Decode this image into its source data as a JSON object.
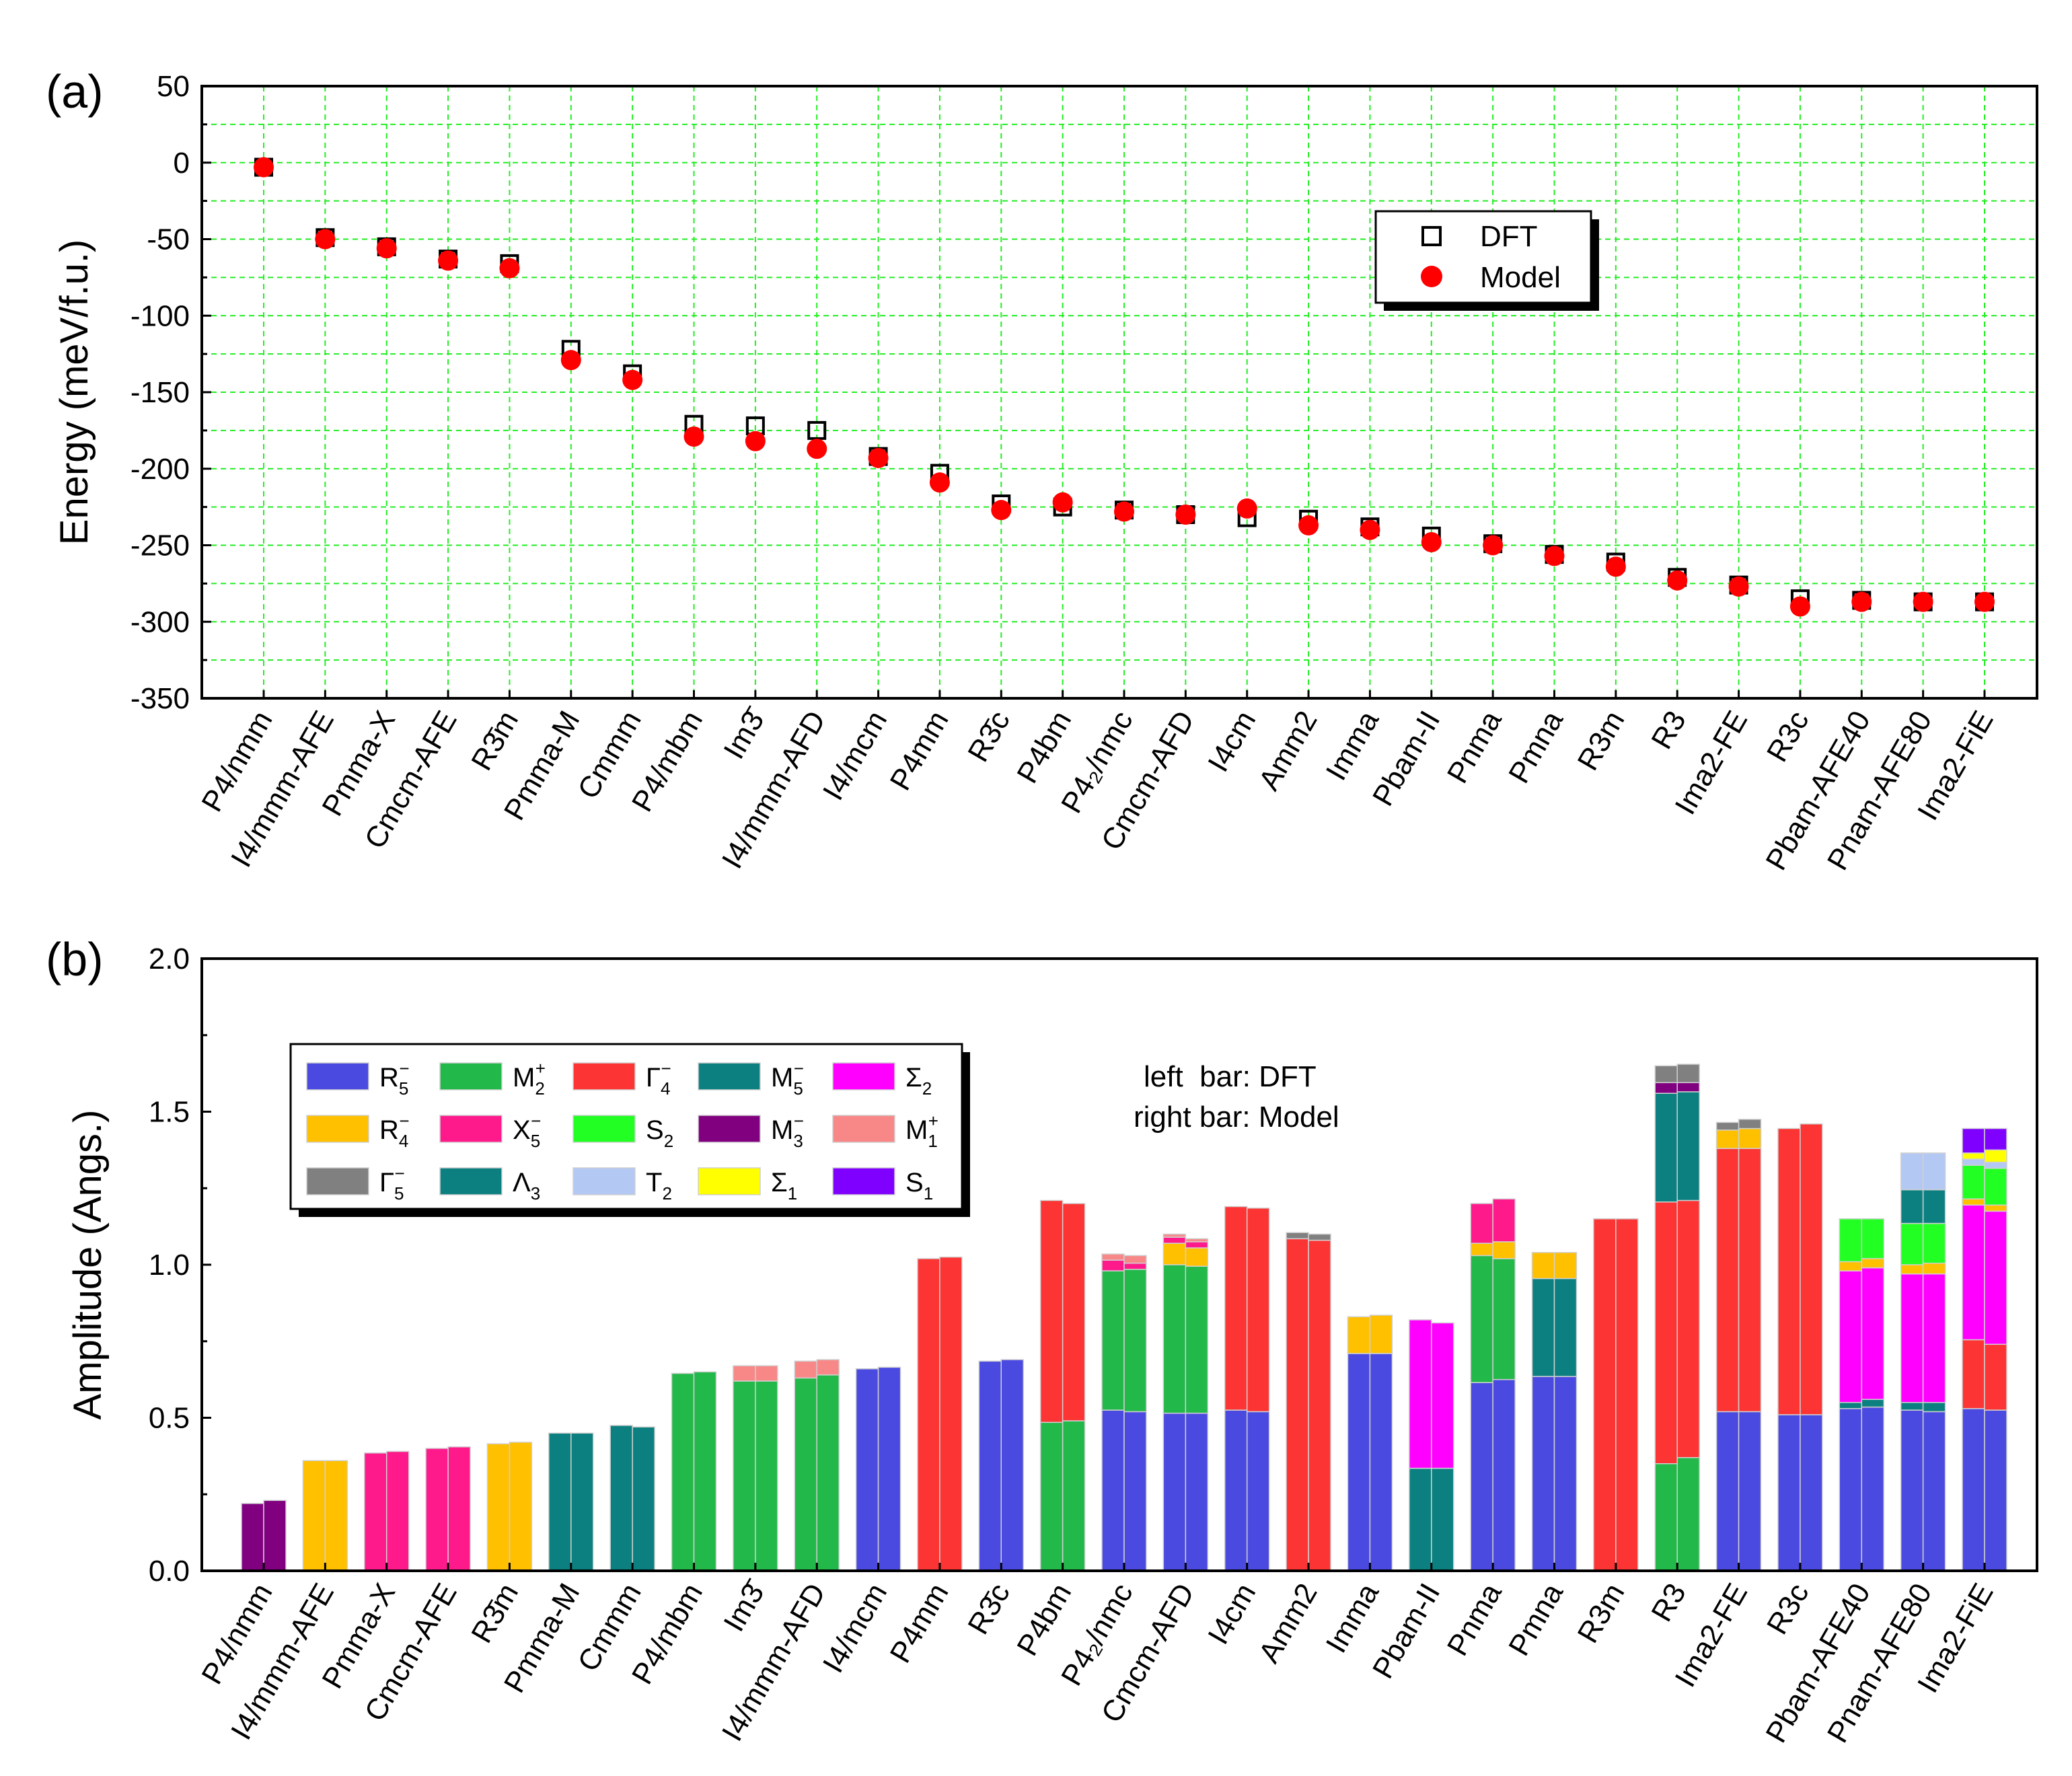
{
  "chart_data": [
    {
      "type": "scatter",
      "panel_label": "(a)",
      "ylabel": "Energy (meV/f.u.)",
      "ylim": [
        -350,
        50
      ],
      "yticks": [
        50,
        0,
        -50,
        -100,
        -150,
        -200,
        -250,
        -300,
        -350
      ],
      "grid": true,
      "legend_position": "right",
      "categories": [
        "P4/nmm",
        "I4/mmm-AFE",
        "Pmma-X",
        "Cmcm-AFE",
        "R3̄m",
        "Pmma-M",
        "Cmmm",
        "P4/mbm",
        "Im3̄",
        "I4/mmm-AFD",
        "I4/mcm",
        "P4mm",
        "R3̄c",
        "P4bm",
        "P4₂/nmc",
        "Cmcm-AFD",
        "I4cm",
        "Amm2",
        "Imma",
        "Pbam-II",
        "Pnma",
        "Pmna",
        "R3m",
        "R3",
        "Ima2-FE",
        "R3c",
        "Pbam-AFE40",
        "Pnam-AFE80",
        "Ima2-FiE"
      ],
      "series": [
        {
          "name": "DFT",
          "marker": "open-square",
          "color": "#000000",
          "values": [
            -3,
            -49,
            -55,
            -63,
            -66,
            -122,
            -138,
            -171,
            -172,
            -175,
            -192,
            -203,
            -223,
            -225,
            -227,
            -230,
            -232,
            -233,
            -238,
            -244,
            -249,
            -256,
            -261,
            -271,
            -276,
            -285,
            -286,
            -287,
            -287
          ]
        },
        {
          "name": "Model",
          "marker": "filled-circle",
          "color": "#ff0000",
          "values": [
            -3,
            -50,
            -56,
            -64,
            -69,
            -129,
            -142,
            -179,
            -182,
            -187,
            -193,
            -209,
            -227,
            -222,
            -228,
            -230,
            -226,
            -237,
            -240,
            -248,
            -250,
            -257,
            -264,
            -273,
            -277,
            -290,
            -287,
            -287,
            -287
          ]
        }
      ]
    },
    {
      "type": "bar",
      "stacked": true,
      "panel_label": "(b)",
      "ylabel": "Amplitude (Angs.)",
      "ylim": [
        0.0,
        2.0
      ],
      "yticks": [
        "0.0",
        "0.5",
        "1.0",
        "1.5",
        "2.0"
      ],
      "annotation": [
        "left  bar: DFT",
        "right bar: Model"
      ],
      "legend_position": "top-left",
      "modes": [
        {
          "key": "R5m",
          "base": "R",
          "sub": "5",
          "sup": "−",
          "color": "#4a4ae0"
        },
        {
          "key": "M2p",
          "base": "M",
          "sub": "2",
          "sup": "+",
          "color": "#22b84a"
        },
        {
          "key": "G4m",
          "base": "Γ",
          "sub": "4",
          "sup": "−",
          "color": "#fc3434"
        },
        {
          "key": "M5m",
          "base": "M",
          "sub": "5",
          "sup": "−",
          "color": "#0c8080"
        },
        {
          "key": "S2s",
          "base": "Σ",
          "sub": "2",
          "sup": "",
          "color": "#ff00ff"
        },
        {
          "key": "R4m",
          "base": "R",
          "sub": "4",
          "sup": "−",
          "color": "#ffc000"
        },
        {
          "key": "X5m",
          "base": "X",
          "sub": "5",
          "sup": "−",
          "color": "#ff1a8c"
        },
        {
          "key": "S2",
          "base": "S",
          "sub": "2",
          "sup": "",
          "color": "#22ff22"
        },
        {
          "key": "M3m",
          "base": "M",
          "sub": "3",
          "sup": "−",
          "color": "#800080"
        },
        {
          "key": "M1p",
          "base": "M",
          "sub": "1",
          "sup": "+",
          "color": "#f88888"
        },
        {
          "key": "G5m",
          "base": "Γ",
          "sub": "5",
          "sup": "−",
          "color": "#808080"
        },
        {
          "key": "L3",
          "base": "Λ",
          "sub": "3",
          "sup": "",
          "color": "#0c8080"
        },
        {
          "key": "T2",
          "base": "T",
          "sub": "2",
          "sup": "",
          "color": "#b4c8f4"
        },
        {
          "key": "S1s",
          "base": "Σ",
          "sub": "1",
          "sup": "",
          "color": "#ffff00"
        },
        {
          "key": "S1",
          "base": "S",
          "sub": "1",
          "sup": "",
          "color": "#8000ff"
        }
      ],
      "categories": [
        "P4/nmm",
        "I4/mmm-AFE",
        "Pmma-X",
        "Cmcm-AFE",
        "R3̄m",
        "Pmma-M",
        "Cmmm",
        "P4/mbm",
        "Im3̄",
        "I4/mmm-AFD",
        "I4/mcm",
        "P4mm",
        "R3̄c",
        "P4bm",
        "P4₂/nmc",
        "Cmcm-AFD",
        "I4cm",
        "Amm2",
        "Imma",
        "Pbam-II",
        "Pnma",
        "Pmna",
        "R3m",
        "R3",
        "Ima2-FE",
        "R3c",
        "Pbam-AFE40",
        "Pnam-AFE80",
        "Ima2-FiE"
      ],
      "bars": [
        {
          "dft": [
            [
              "M3m",
              0.22
            ]
          ],
          "model": [
            [
              "M3m",
              0.23
            ]
          ]
        },
        {
          "dft": [
            [
              "R4m",
              0.36
            ]
          ],
          "model": [
            [
              "R4m",
              0.36
            ]
          ]
        },
        {
          "dft": [
            [
              "X5m",
              0.385
            ]
          ],
          "model": [
            [
              "X5m",
              0.39
            ]
          ]
        },
        {
          "dft": [
            [
              "X5m",
              0.4
            ]
          ],
          "model": [
            [
              "X5m",
              0.405
            ]
          ]
        },
        {
          "dft": [
            [
              "R4m",
              0.415
            ]
          ],
          "model": [
            [
              "R4m",
              0.42
            ]
          ]
        },
        {
          "dft": [
            [
              "L3",
              0.45
            ]
          ],
          "model": [
            [
              "L3",
              0.45
            ]
          ]
        },
        {
          "dft": [
            [
              "L3",
              0.475
            ]
          ],
          "model": [
            [
              "L3",
              0.47
            ]
          ]
        },
        {
          "dft": [
            [
              "M2p",
              0.645
            ]
          ],
          "model": [
            [
              "M2p",
              0.65
            ]
          ]
        },
        {
          "dft": [
            [
              "M2p",
              0.62
            ],
            [
              "M1p",
              0.05
            ]
          ],
          "model": [
            [
              "M2p",
              0.62
            ],
            [
              "M1p",
              0.05
            ]
          ]
        },
        {
          "dft": [
            [
              "M2p",
              0.63
            ],
            [
              "M1p",
              0.055
            ]
          ],
          "model": [
            [
              "M2p",
              0.64
            ],
            [
              "M1p",
              0.05
            ]
          ]
        },
        {
          "dft": [
            [
              "R5m",
              0.66
            ]
          ],
          "model": [
            [
              "R5m",
              0.665
            ]
          ]
        },
        {
          "dft": [
            [
              "G4m",
              1.02
            ]
          ],
          "model": [
            [
              "G4m",
              1.025
            ]
          ]
        },
        {
          "dft": [
            [
              "R5m",
              0.685
            ]
          ],
          "model": [
            [
              "R5m",
              0.69
            ]
          ]
        },
        {
          "dft": [
            [
              "M2p",
              0.485
            ],
            [
              "G4m",
              0.725
            ]
          ],
          "model": [
            [
              "M2p",
              0.49
            ],
            [
              "G4m",
              0.71
            ]
          ]
        },
        {
          "dft": [
            [
              "R5m",
              0.525
            ],
            [
              "M2p",
              0.455
            ],
            [
              "X5m",
              0.035
            ],
            [
              "M1p",
              0.02
            ]
          ],
          "model": [
            [
              "R5m",
              0.52
            ],
            [
              "M2p",
              0.465
            ],
            [
              "X5m",
              0.02
            ],
            [
              "M1p",
              0.025
            ]
          ]
        },
        {
          "dft": [
            [
              "R5m",
              0.515
            ],
            [
              "M2p",
              0.485
            ],
            [
              "R4m",
              0.07
            ],
            [
              "X5m",
              0.02
            ],
            [
              "M1p",
              0.01
            ]
          ],
          "model": [
            [
              "R5m",
              0.515
            ],
            [
              "M2p",
              0.48
            ],
            [
              "R4m",
              0.06
            ],
            [
              "X5m",
              0.02
            ],
            [
              "M1p",
              0.01
            ]
          ]
        },
        {
          "dft": [
            [
              "R5m",
              0.525
            ],
            [
              "G4m",
              0.665
            ]
          ],
          "model": [
            [
              "R5m",
              0.52
            ],
            [
              "G4m",
              0.665
            ]
          ]
        },
        {
          "dft": [
            [
              "G4m",
              1.085
            ],
            [
              "G5m",
              0.02
            ]
          ],
          "model": [
            [
              "G4m",
              1.08
            ],
            [
              "G5m",
              0.02
            ]
          ]
        },
        {
          "dft": [
            [
              "R5m",
              0.71
            ],
            [
              "R4m",
              0.12
            ]
          ],
          "model": [
            [
              "R5m",
              0.71
            ],
            [
              "R4m",
              0.125
            ]
          ]
        },
        {
          "dft": [
            [
              "L3",
              0.335
            ],
            [
              "S2s",
              0.485
            ]
          ],
          "model": [
            [
              "L3",
              0.335
            ],
            [
              "S2s",
              0.475
            ]
          ]
        },
        {
          "dft": [
            [
              "R5m",
              0.615
            ],
            [
              "M2p",
              0.415
            ],
            [
              "R4m",
              0.04
            ],
            [
              "X5m",
              0.13
            ]
          ],
          "model": [
            [
              "R5m",
              0.625
            ],
            [
              "M2p",
              0.395
            ],
            [
              "R4m",
              0.055
            ],
            [
              "X5m",
              0.14
            ]
          ]
        },
        {
          "dft": [
            [
              "R5m",
              0.635
            ],
            [
              "L3",
              0.32
            ],
            [
              "R4m",
              0.085
            ]
          ],
          "model": [
            [
              "R5m",
              0.635
            ],
            [
              "L3",
              0.32
            ],
            [
              "R4m",
              0.085
            ]
          ]
        },
        {
          "dft": [
            [
              "G4m",
              1.15
            ]
          ],
          "model": [
            [
              "G4m",
              1.15
            ]
          ]
        },
        {
          "dft": [
            [
              "M2p",
              0.35
            ],
            [
              "G4m",
              0.855
            ],
            [
              "L3",
              0.355
            ],
            [
              "M3m",
              0.035
            ],
            [
              "G5m",
              0.055
            ]
          ],
          "model": [
            [
              "M2p",
              0.37
            ],
            [
              "G4m",
              0.84
            ],
            [
              "L3",
              0.355
            ],
            [
              "M3m",
              0.03
            ],
            [
              "G5m",
              0.06
            ]
          ]
        },
        {
          "dft": [
            [
              "R5m",
              0.52
            ],
            [
              "G4m",
              0.86
            ],
            [
              "R4m",
              0.06
            ],
            [
              "G5m",
              0.025
            ]
          ],
          "model": [
            [
              "R5m",
              0.52
            ],
            [
              "G4m",
              0.86
            ],
            [
              "R4m",
              0.065
            ],
            [
              "G5m",
              0.03
            ]
          ]
        },
        {
          "dft": [
            [
              "R5m",
              0.51
            ],
            [
              "G4m",
              0.935
            ]
          ],
          "model": [
            [
              "R5m",
              0.51
            ],
            [
              "G4m",
              0.95
            ]
          ]
        },
        {
          "dft": [
            [
              "R5m",
              0.53
            ],
            [
              "L3",
              0.02
            ],
            [
              "S2s",
              0.43
            ],
            [
              "R4m",
              0.03
            ],
            [
              "S2",
              0.14
            ]
          ],
          "model": [
            [
              "R5m",
              0.535
            ],
            [
              "L3",
              0.025
            ],
            [
              "S2s",
              0.43
            ],
            [
              "R4m",
              0.03
            ],
            [
              "S2",
              0.13
            ]
          ]
        },
        {
          "dft": [
            [
              "R5m",
              0.525
            ],
            [
              "L3",
              0.025
            ],
            [
              "S2s",
              0.42
            ],
            [
              "R4m",
              0.03
            ],
            [
              "S2",
              0.135
            ],
            [
              "L3",
              0.11
            ],
            [
              "T2",
              0.12
            ]
          ],
          "model": [
            [
              "R5m",
              0.52
            ],
            [
              "L3",
              0.03
            ],
            [
              "S2s",
              0.42
            ],
            [
              "R4m",
              0.035
            ],
            [
              "S2",
              0.13
            ],
            [
              "L3",
              0.11
            ],
            [
              "T2",
              0.12
            ]
          ]
        },
        {
          "dft": [
            [
              "R5m",
              0.53
            ],
            [
              "G4m",
              0.225
            ],
            [
              "S2s",
              0.44
            ],
            [
              "R4m",
              0.02
            ],
            [
              "S2",
              0.11
            ],
            [
              "T2",
              0.02
            ],
            [
              "S1s",
              0.02
            ],
            [
              "S1",
              0.08
            ]
          ],
          "model": [
            [
              "R5m",
              0.525
            ],
            [
              "G4m",
              0.215
            ],
            [
              "S2s",
              0.435
            ],
            [
              "R4m",
              0.02
            ],
            [
              "S2",
              0.12
            ],
            [
              "T2",
              0.02
            ],
            [
              "S1s",
              0.04
            ],
            [
              "S1",
              0.07
            ]
          ]
        }
      ]
    }
  ]
}
